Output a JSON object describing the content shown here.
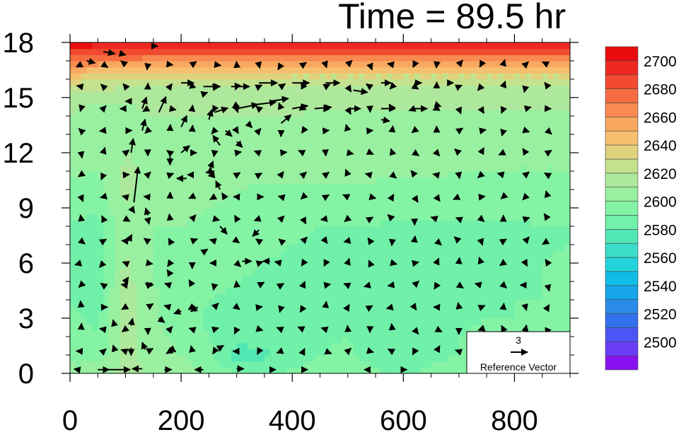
{
  "chart_data": {
    "type": "heatmap",
    "title": "Time = 89.5 hr",
    "xlabel": "",
    "ylabel": "",
    "xlim": [
      0,
      900
    ],
    "ylim": [
      0,
      18
    ],
    "x_ticks": [
      0,
      200,
      400,
      600,
      800
    ],
    "y_ticks": [
      0,
      3,
      6,
      9,
      12,
      15,
      18
    ],
    "colorbar": {
      "labels": [
        2500,
        2520,
        2540,
        2560,
        2580,
        2600,
        2620,
        2640,
        2660,
        2680,
        2700
      ],
      "levels": [
        2490,
        2500,
        2510,
        2520,
        2530,
        2540,
        2550,
        2560,
        2570,
        2580,
        2590,
        2600,
        2610,
        2620,
        2630,
        2640,
        2650,
        2660,
        2670,
        2680,
        2690,
        2700,
        2710
      ],
      "colors": [
        "#8a12f0",
        "#6a3df5",
        "#4a55f5",
        "#3270ee",
        "#2a8be8",
        "#16a5ea",
        "#10bde6",
        "#24d3dc",
        "#3cddc8",
        "#52e6b4",
        "#70f0a8",
        "#84f3a4",
        "#98f0a0",
        "#aee89c",
        "#c4e28e",
        "#e0d27c",
        "#f4c070",
        "#f8a860",
        "#f88a50",
        "#f66c40",
        "#f24a30",
        "#ee2a20",
        "#ea0c0e"
      ]
    },
    "field": {
      "x": [
        0,
        50,
        100,
        150,
        200,
        250,
        300,
        350,
        400,
        450,
        500,
        550,
        600,
        650,
        700,
        750,
        800,
        850,
        900
      ],
      "y": [
        0,
        1,
        2,
        3,
        4,
        5,
        6,
        7,
        8,
        9,
        10,
        11,
        12,
        13,
        14,
        15,
        16,
        17,
        18
      ],
      "note_units": "theta_e K",
      "rows": [
        [
          2602,
          2606,
          2614,
          2608,
          2604,
          2598,
          2590,
          2588,
          2592,
          2594,
          2596,
          2592,
          2588,
          2592,
          2594,
          2596,
          2596,
          2598,
          2598
        ],
        [
          2598,
          2594,
          2612,
          2606,
          2600,
          2594,
          2576,
          2578,
          2586,
          2590,
          2592,
          2586,
          2584,
          2588,
          2590,
          2592,
          2594,
          2596,
          2596
        ],
        [
          2594,
          2590,
          2614,
          2604,
          2596,
          2590,
          2582,
          2584,
          2588,
          2588,
          2590,
          2586,
          2586,
          2588,
          2590,
          2592,
          2592,
          2594,
          2594
        ],
        [
          2592,
          2588,
          2616,
          2602,
          2594,
          2588,
          2586,
          2586,
          2588,
          2588,
          2588,
          2588,
          2586,
          2588,
          2588,
          2590,
          2590,
          2592,
          2592
        ],
        [
          2590,
          2586,
          2616,
          2602,
          2594,
          2590,
          2588,
          2588,
          2588,
          2588,
          2588,
          2588,
          2586,
          2586,
          2588,
          2588,
          2590,
          2590,
          2592
        ],
        [
          2588,
          2584,
          2614,
          2600,
          2596,
          2594,
          2590,
          2588,
          2588,
          2588,
          2588,
          2586,
          2586,
          2586,
          2586,
          2588,
          2588,
          2590,
          2592
        ],
        [
          2590,
          2584,
          2612,
          2600,
          2596,
          2596,
          2592,
          2590,
          2588,
          2588,
          2588,
          2586,
          2586,
          2586,
          2586,
          2586,
          2588,
          2590,
          2592
        ],
        [
          2586,
          2584,
          2610,
          2600,
          2598,
          2598,
          2594,
          2592,
          2590,
          2588,
          2588,
          2588,
          2586,
          2586,
          2586,
          2586,
          2588,
          2588,
          2590
        ],
        [
          2588,
          2586,
          2610,
          2600,
          2600,
          2598,
          2596,
          2594,
          2592,
          2590,
          2590,
          2590,
          2588,
          2588,
          2588,
          2588,
          2588,
          2590,
          2590
        ],
        [
          2594,
          2592,
          2610,
          2602,
          2602,
          2600,
          2598,
          2596,
          2594,
          2594,
          2594,
          2592,
          2592,
          2592,
          2592,
          2592,
          2592,
          2594,
          2594
        ],
        [
          2598,
          2596,
          2612,
          2606,
          2604,
          2604,
          2600,
          2598,
          2598,
          2596,
          2596,
          2596,
          2596,
          2596,
          2596,
          2596,
          2596,
          2596,
          2596
        ],
        [
          2602,
          2600,
          2612,
          2606,
          2604,
          2604,
          2604,
          2604,
          2604,
          2604,
          2604,
          2604,
          2602,
          2602,
          2600,
          2600,
          2600,
          2600,
          2600
        ],
        [
          2602,
          2600,
          2610,
          2608,
          2606,
          2604,
          2606,
          2606,
          2606,
          2606,
          2604,
          2602,
          2604,
          2604,
          2602,
          2602,
          2600,
          2600,
          2600
        ],
        [
          2604,
          2602,
          2608,
          2610,
          2608,
          2608,
          2608,
          2606,
          2606,
          2606,
          2606,
          2606,
          2606,
          2604,
          2604,
          2604,
          2604,
          2604,
          2604
        ],
        [
          2610,
          2606,
          2606,
          2610,
          2610,
          2610,
          2610,
          2610,
          2610,
          2608,
          2608,
          2608,
          2608,
          2608,
          2608,
          2608,
          2606,
          2606,
          2606
        ],
        [
          2614,
          2612,
          2612,
          2614,
          2614,
          2614,
          2614,
          2614,
          2614,
          2614,
          2614,
          2614,
          2614,
          2614,
          2614,
          2614,
          2614,
          2614,
          2614
        ],
        [
          2636,
          2630,
          2626,
          2624,
          2624,
          2624,
          2624,
          2624,
          2624,
          2624,
          2624,
          2624,
          2624,
          2624,
          2624,
          2624,
          2624,
          2624,
          2624
        ],
        [
          2672,
          2666,
          2664,
          2662,
          2662,
          2662,
          2662,
          2662,
          2660,
          2660,
          2660,
          2660,
          2660,
          2660,
          2660,
          2660,
          2660,
          2660,
          2660
        ],
        [
          2708,
          2706,
          2706,
          2706,
          2706,
          2706,
          2706,
          2706,
          2706,
          2706,
          2706,
          2706,
          2706,
          2706,
          2706,
          2706,
          2706,
          2706,
          2706
        ]
      ]
    },
    "vectors": [
      {
        "x": 15,
        "y": 0.2,
        "u": -0.6,
        "v": 0.1
      },
      {
        "x": 50,
        "y": 0.2,
        "u": 1.6,
        "v": 0.0
      },
      {
        "x": 70,
        "y": 0.2,
        "u": 3.0,
        "v": 0.0
      },
      {
        "x": 130,
        "y": 0.25,
        "u": -1.4,
        "v": 0.0
      },
      {
        "x": 170,
        "y": 0.2,
        "u": 1.0,
        "v": 0.0
      },
      {
        "x": 240,
        "y": 0.2,
        "u": -1.2,
        "v": 0.0
      },
      {
        "x": 300,
        "y": 0.25,
        "u": 1.0,
        "v": 0.0
      },
      {
        "x": 360,
        "y": 0.2,
        "u": 0.8,
        "v": 0.0
      },
      {
        "x": 420,
        "y": 0.2,
        "u": 0.6,
        "v": 0.0
      },
      {
        "x": 540,
        "y": 0.2,
        "u": -0.8,
        "v": 0.0
      },
      {
        "x": 600,
        "y": 0.2,
        "u": 0.5,
        "v": 0.0
      },
      {
        "x": 80,
        "y": 1.3,
        "u": -0.2,
        "v": 0.6
      },
      {
        "x": 110,
        "y": 1.4,
        "u": 0.0,
        "v": -1.1
      },
      {
        "x": 135,
        "y": 1.3,
        "u": -0.4,
        "v": 1.0
      },
      {
        "x": 180,
        "y": 1.4,
        "u": 0.8,
        "v": -0.6
      },
      {
        "x": 270,
        "y": 1.4,
        "u": 0.5,
        "v": 0.3
      },
      {
        "x": 80,
        "y": 2.6,
        "u": -0.2,
        "v": 0.8
      },
      {
        "x": 110,
        "y": 2.6,
        "u": 0.2,
        "v": 1.0
      },
      {
        "x": 160,
        "y": 3.0,
        "u": 0.8,
        "v": -0.6
      },
      {
        "x": 200,
        "y": 3.4,
        "u": -1.0,
        "v": -0.4
      },
      {
        "x": 230,
        "y": 3.6,
        "u": -1.0,
        "v": -0.6
      },
      {
        "x": 100,
        "y": 5.0,
        "u": 0.4,
        "v": 0.6
      },
      {
        "x": 140,
        "y": 4.8,
        "u": 0.6,
        "v": 0.3
      },
      {
        "x": 180,
        "y": 5.4,
        "u": -0.4,
        "v": 0.6
      },
      {
        "x": 310,
        "y": 6.1,
        "u": 1.3,
        "v": 0.0
      },
      {
        "x": 360,
        "y": 6.1,
        "u": -1.0,
        "v": 0.0
      },
      {
        "x": 240,
        "y": 6.6,
        "u": 0.6,
        "v": 0.4
      },
      {
        "x": 270,
        "y": 8.0,
        "u": 1.0,
        "v": -1.1
      },
      {
        "x": 340,
        "y": 7.8,
        "u": -0.9,
        "v": -0.9
      },
      {
        "x": 105,
        "y": 7.2,
        "u": 0.5,
        "v": 0.9
      },
      {
        "x": 110,
        "y": 9.0,
        "u": 0.5,
        "v": -0.7
      },
      {
        "x": 140,
        "y": 8.6,
        "u": -0.3,
        "v": 1.0
      },
      {
        "x": 280,
        "y": 9.5,
        "u": -0.5,
        "v": 0.8
      },
      {
        "x": 210,
        "y": 10.6,
        "u": -1.4,
        "v": 0.0
      },
      {
        "x": 260,
        "y": 11.0,
        "u": -1.2,
        "v": -0.2
      },
      {
        "x": 270,
        "y": 10.0,
        "u": -0.6,
        "v": 1.2
      },
      {
        "x": 115,
        "y": 9.3,
        "u": 0.6,
        "v": 5.0
      },
      {
        "x": 110,
        "y": 12.0,
        "u": 0.3,
        "v": 2.0
      },
      {
        "x": 130,
        "y": 13.2,
        "u": 0.4,
        "v": 1.6
      },
      {
        "x": 130,
        "y": 14.4,
        "u": 0.6,
        "v": 1.6
      },
      {
        "x": 180,
        "y": 11.8,
        "u": 0.0,
        "v": -1.2
      },
      {
        "x": 200,
        "y": 13.4,
        "u": 0.8,
        "v": 1.6
      },
      {
        "x": 200,
        "y": 12.0,
        "u": 1.2,
        "v": 1.0
      },
      {
        "x": 250,
        "y": 11.0,
        "u": 0.6,
        "v": 1.4
      },
      {
        "x": 250,
        "y": 13.8,
        "u": 0.4,
        "v": 1.4
      },
      {
        "x": 270,
        "y": 12.4,
        "u": -1.0,
        "v": 1.4
      },
      {
        "x": 280,
        "y": 13.2,
        "u": 0.9,
        "v": -0.8
      },
      {
        "x": 300,
        "y": 14.6,
        "u": -0.6,
        "v": -0.4
      },
      {
        "x": 320,
        "y": 13.6,
        "u": 0.6,
        "v": -0.6
      },
      {
        "x": 300,
        "y": 12.6,
        "u": 0.8,
        "v": -0.8
      },
      {
        "x": 380,
        "y": 13.6,
        "u": 1.4,
        "v": 1.2
      },
      {
        "x": 240,
        "y": 15.2,
        "u": 0.6,
        "v": 0.2
      },
      {
        "x": 260,
        "y": 14.2,
        "u": 1.9,
        "v": 0.6
      },
      {
        "x": 300,
        "y": 14.4,
        "u": 3.0,
        "v": 0.6
      },
      {
        "x": 330,
        "y": 14.6,
        "u": 3.2,
        "v": 0.4
      },
      {
        "x": 360,
        "y": 14.8,
        "u": 2.6,
        "v": 0.4
      },
      {
        "x": 400,
        "y": 14.4,
        "u": 2.2,
        "v": 0.4
      },
      {
        "x": 440,
        "y": 14.4,
        "u": 2.4,
        "v": 0.2
      },
      {
        "x": 500,
        "y": 14.4,
        "u": 1.8,
        "v": 0.0
      },
      {
        "x": 560,
        "y": 14.4,
        "u": 2.0,
        "v": 0.0
      },
      {
        "x": 620,
        "y": 14.4,
        "u": 1.8,
        "v": 0.0
      },
      {
        "x": 660,
        "y": 14.6,
        "u": 0.6,
        "v": -0.2
      },
      {
        "x": 560,
        "y": 13.8,
        "u": 1.2,
        "v": -0.2
      },
      {
        "x": 200,
        "y": 15.8,
        "u": 1.8,
        "v": 0.0
      },
      {
        "x": 240,
        "y": 15.6,
        "u": 2.4,
        "v": 0.0
      },
      {
        "x": 290,
        "y": 15.6,
        "u": 2.6,
        "v": 0.0
      },
      {
        "x": 340,
        "y": 15.8,
        "u": 2.6,
        "v": 0.0
      },
      {
        "x": 400,
        "y": 15.8,
        "u": 2.4,
        "v": 0.0
      },
      {
        "x": 460,
        "y": 15.8,
        "u": 2.0,
        "v": 0.0
      },
      {
        "x": 510,
        "y": 15.4,
        "u": 2.0,
        "v": -0.3
      },
      {
        "x": 560,
        "y": 15.8,
        "u": 1.4,
        "v": 0.0
      },
      {
        "x": 620,
        "y": 15.8,
        "u": 1.0,
        "v": 0.0
      },
      {
        "x": 680,
        "y": 15.8,
        "u": 0.8,
        "v": 0.0
      },
      {
        "x": 110,
        "y": 14.8,
        "u": -0.8,
        "v": 0.0
      },
      {
        "x": 160,
        "y": 14.2,
        "u": 1.0,
        "v": 2.2
      },
      {
        "x": 60,
        "y": 17.5,
        "u": 1.6,
        "v": -0.3
      },
      {
        "x": 90,
        "y": 17.4,
        "u": 0.8,
        "v": -0.2
      },
      {
        "x": 150,
        "y": 17.8,
        "u": 0.6,
        "v": 0.0
      },
      {
        "x": 30,
        "y": 17.0,
        "u": 1.2,
        "v": -0.3
      }
    ],
    "reference_vector": {
      "magnitude": "3",
      "label": "Reference Vector"
    }
  }
}
